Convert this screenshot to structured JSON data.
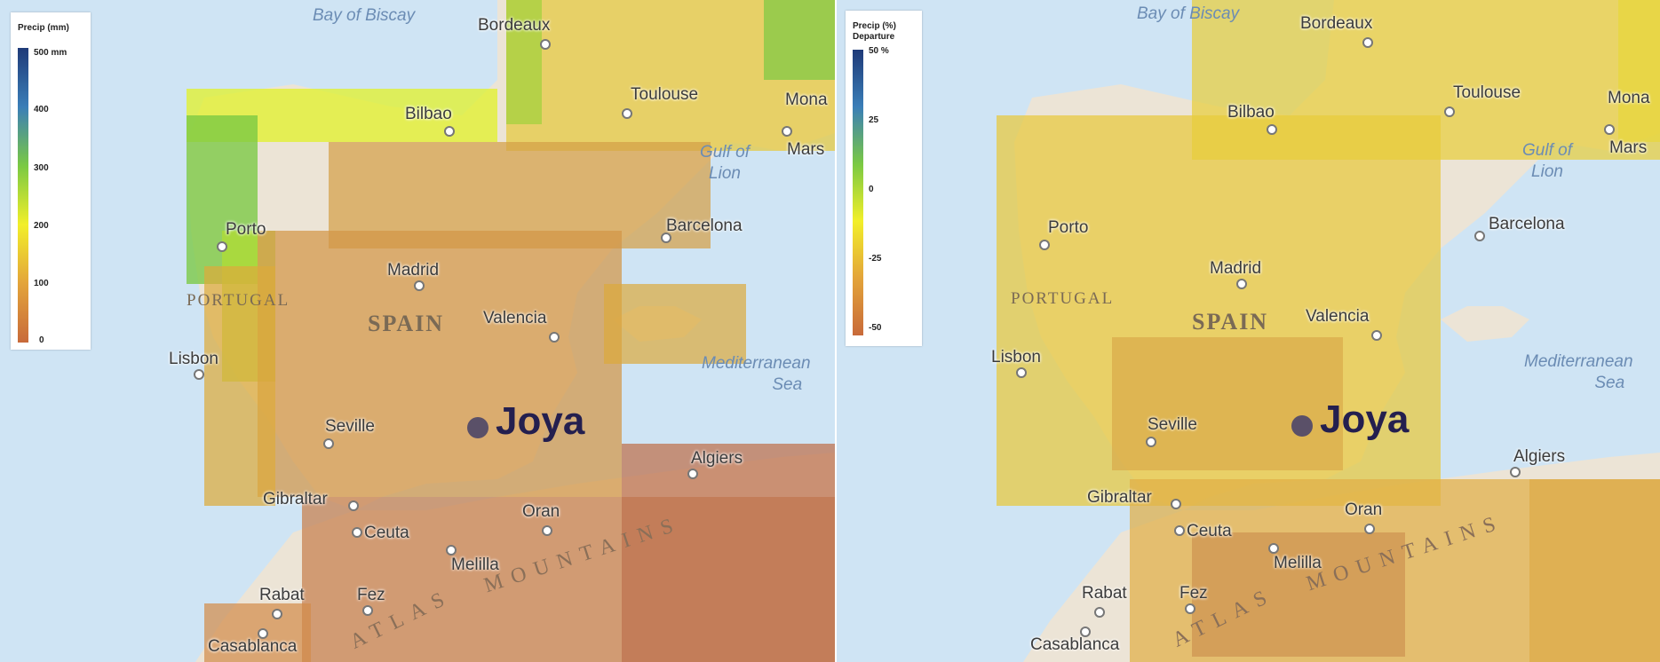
{
  "left_map": {
    "legend": {
      "title": "Precip (mm)",
      "labels": [
        "500  mm",
        "400",
        "300",
        "200",
        "100",
        "0"
      ],
      "stops": [
        "#1f3a78",
        "#3a7eb8",
        "#7ac943",
        "#f2ef2a",
        "#e3a43a",
        "#c86a3a"
      ]
    }
  },
  "right_map": {
    "legend": {
      "title": "Precip (%)\nDeparture",
      "labels": [
        "50  %",
        "25",
        "0",
        "-25",
        "-50"
      ],
      "stops": [
        "#1f3a78",
        "#3a7eb8",
        "#7ac943",
        "#f2ef2a",
        "#e3a43a",
        "#c86a3a"
      ]
    }
  },
  "places": {
    "bay_of_biscay": "Bay of Biscay",
    "bordeaux": "Bordeaux",
    "toulouse": "Toulouse",
    "mona": "Mona",
    "mars": "Mars",
    "gulf_of_lion_1": "Gulf of",
    "gulf_of_lion_2": "Lion",
    "bilbao": "Bilbao",
    "barcelona": "Barcelona",
    "porto": "Porto",
    "madrid": "Madrid",
    "portugal": "PORTUGAL",
    "spain": "SPAIN",
    "valencia": "Valencia",
    "lisbon": "Lisbon",
    "med_sea_1": "Mediterranean",
    "med_sea_2": "Sea",
    "seville": "Seville",
    "algiers": "Algiers",
    "gibraltar": "Gibraltar",
    "oran": "Oran",
    "ceuta": "Ceuta",
    "melilla": "Melilla",
    "rabat": "Rabat",
    "fez": "Fez",
    "casablanca": "Casablanca",
    "mountains": "MOUNTAINS",
    "atlas": "ATLAS",
    "joya": "Joya"
  },
  "colors": {
    "sea": "#cfe4f4",
    "land": "#ece4d6",
    "marker": "#5a5068",
    "marker_label": "#241f4f"
  }
}
